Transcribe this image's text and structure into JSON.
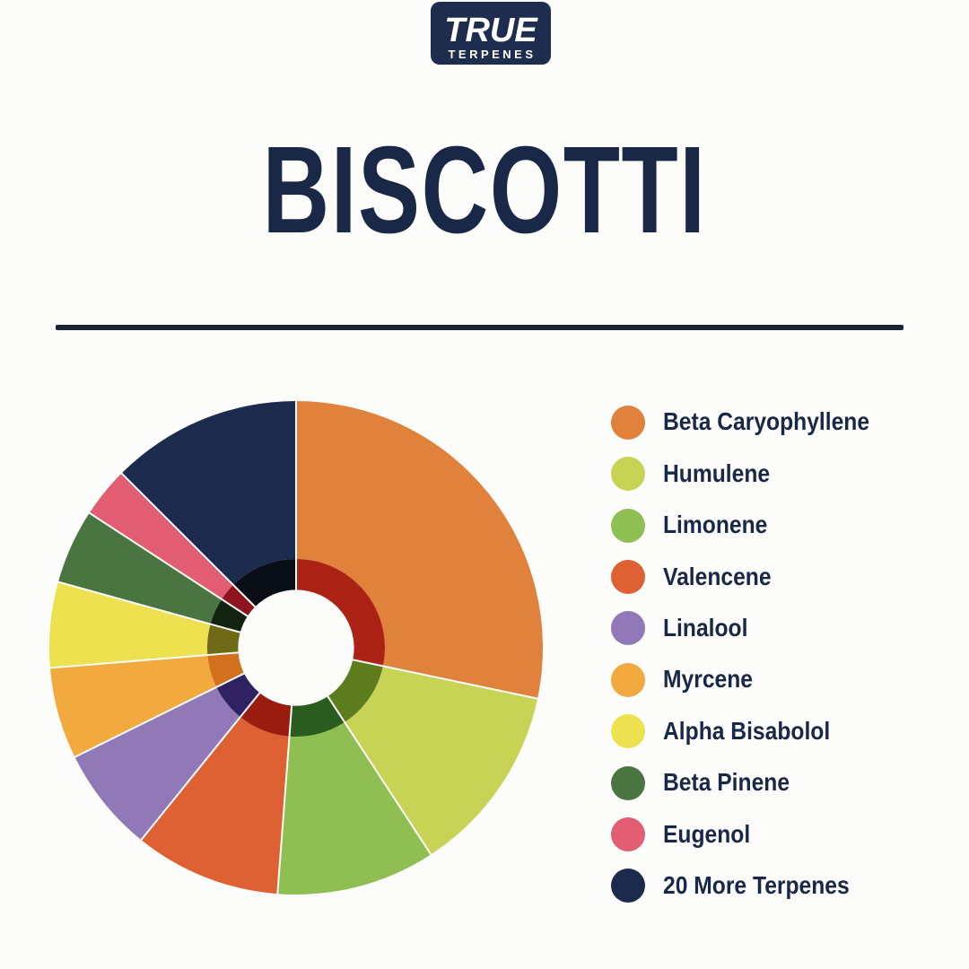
{
  "brand": {
    "logo_line1": "TRUE",
    "logo_line2": "TERPENES"
  },
  "title": "BISCOTTI",
  "theme": {
    "navy": "#1B2A4D",
    "title_color": "#1A2847",
    "divider_color": "#1B2337",
    "background": "#FCFCFA",
    "logo_bg": "#1E2C4E",
    "logo_text": "#FFFFFF",
    "slice_separator": "#FCFCFA"
  },
  "chart_data": {
    "type": "pie",
    "style": "double-donut",
    "title": "BISCOTTI",
    "legend_position": "right",
    "direction": "clockwise",
    "start_angle_deg": 0,
    "outer_radius_px": 275,
    "inner_ring_radius_ratio": 0.36,
    "hole_radius_ratio": 0.235,
    "slices": [
      {
        "label": "Beta Caryophyllene",
        "percent": 28.3,
        "color": "#E0813C",
        "inner_color": "#AC2315"
      },
      {
        "label": "Humulene",
        "percent": 12.5,
        "color": "#C7D355",
        "inner_color": "#5C7C1E"
      },
      {
        "label": "Limonene",
        "percent": 10.4,
        "color": "#8FBE52",
        "inner_color": "#2B5C1F"
      },
      {
        "label": "Valencene",
        "percent": 9.6,
        "color": "#DD6133",
        "inner_color": "#9A1D10"
      },
      {
        "label": "Linalool",
        "percent": 6.9,
        "color": "#9179B8",
        "inner_color": "#2E2263"
      },
      {
        "label": "Myrcene",
        "percent": 6.0,
        "color": "#F2A93D",
        "inner_color": "#D2711B"
      },
      {
        "label": "Alpha Bisabolol",
        "percent": 5.6,
        "color": "#EDE14F",
        "inner_color": "#6E6A16"
      },
      {
        "label": "Beta Pinene",
        "percent": 4.9,
        "color": "#4A7540",
        "inner_color": "#12230F"
      },
      {
        "label": "Eugenol",
        "percent": 3.3,
        "color": "#E25C72",
        "inner_color": "#8E1420"
      },
      {
        "label": "20 More Terpenes",
        "percent": 12.5,
        "color": "#1B2A4D",
        "inner_color": "#0A0E16"
      }
    ]
  }
}
